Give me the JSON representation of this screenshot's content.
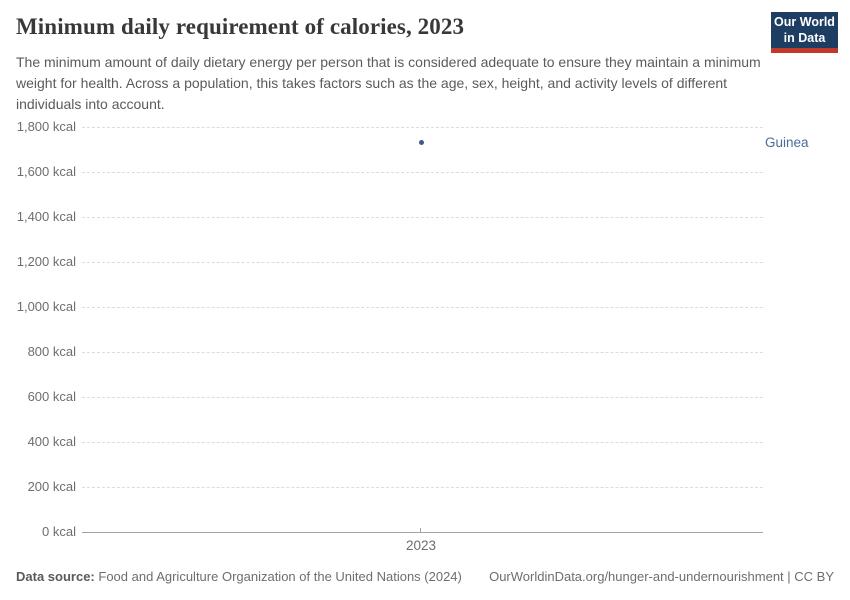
{
  "header": {
    "title": "Minimum daily requirement of calories, 2023",
    "subtitle": "The minimum amount of daily dietary energy per person that is considered adequate to ensure they maintain a minimum weight for health. Across a population, this takes factors such as the age, sex, height, and activity levels of different individuals into account.",
    "logo": {
      "line1": "Our World",
      "line2": "in Data"
    }
  },
  "chart_data": {
    "type": "scatter",
    "title": "Minimum daily requirement of calories, 2023",
    "series": [
      {
        "name": "Guinea",
        "points": [
          {
            "x": 2023,
            "y": 1729
          }
        ]
      }
    ],
    "xticks": [
      2023
    ],
    "xtick_labels": [
      "2023"
    ],
    "ylim": [
      0,
      1800
    ],
    "yticks": [
      0,
      200,
      400,
      600,
      800,
      1000,
      1200,
      1400,
      1600,
      1800
    ],
    "ytick_labels": [
      "0 kcal",
      "200 kcal",
      "400 kcal",
      "600 kcal",
      "800 kcal",
      "1,000 kcal",
      "1,200 kcal",
      "1,400 kcal",
      "1,600 kcal",
      "1,800 kcal"
    ],
    "unit": "kcal",
    "grid": "horizontal-dashed",
    "legend_position": "right-of-point"
  },
  "colors": {
    "point": "#3d5a8f",
    "entity_label": "#4c6a9c",
    "grid": "#dcdcdc",
    "axis": "#a3a3a3",
    "tick_text": "#6e6e6e",
    "logo_bg": "#1d3d63",
    "logo_underline": "#c0392b"
  },
  "footer": {
    "source_label": "Data source:",
    "source_text": "Food and Agriculture Organization of the United Nations (2024)",
    "link_text": "OurWorldinData.org/hunger-and-undernourishment | CC BY"
  }
}
